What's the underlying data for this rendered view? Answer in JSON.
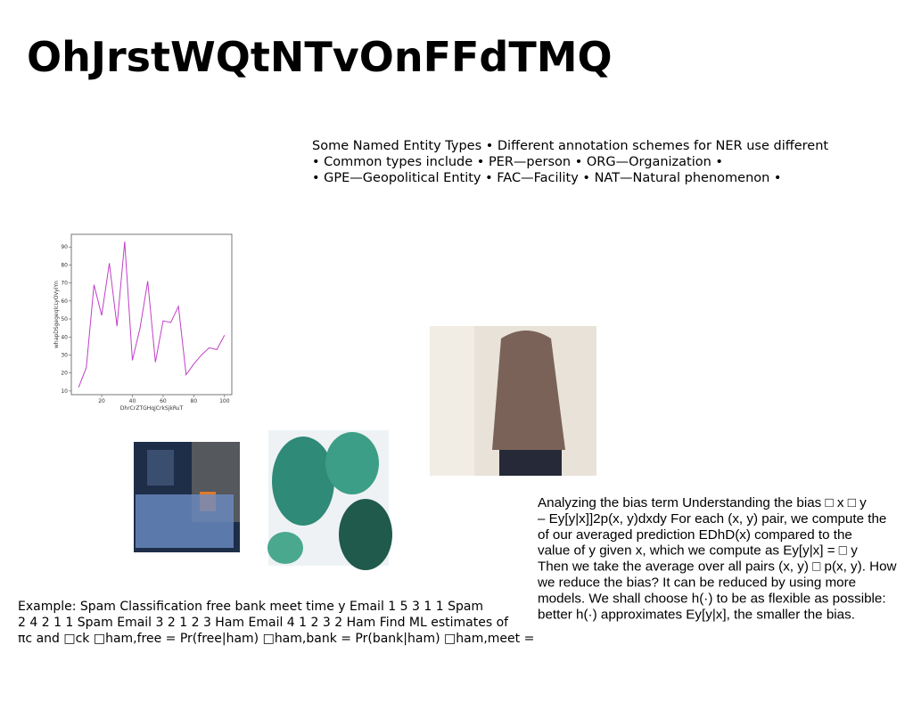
{
  "title": "OhJrstWQtNTvOnFFdTMQ",
  "blocks": [
    {
      "lines": [
        "Some Named Entity Types • Different annotation schemes for NER use different",
        "• Common types include • PER—person • ORG—Organization •",
        "• GPE—Geopolitical Entity • FAC—Facility • NAT—Natural phenomenon •"
      ]
    },
    {
      "lines": [
        "Analyzing the bias term Understanding the bias □ x □ y",
        "– Ey[y|x]]2p(x, y)dxdy For each (x, y) pair, we compute the",
        "of our averaged prediction EDhD(x) compared to the",
        "value of y given x, which we compute as Ey[y|x] = □ y",
        "Then we take the average over all pairs (x, y) □ p(x, y). How",
        "we reduce the bias? It can be reduced by using more",
        "models. We shall choose h(·) to be as flexible as possible:",
        "better h(·) approximates Ey[y|x], the smaller the bias."
      ]
    },
    {
      "lines": [
        "Example: Spam Classification free bank meet time y Email 1 5 3 1 1 Spam",
        "2 4 2 1 1 Spam Email 3 2 1 2 3 Ham Email 4 1 2 3 2 Ham Find ML estimates of",
        "πc and □ck □ham,free = Pr(free|ham) □ham,bank = Pr(bank|ham) □ham,meet ="
      ]
    }
  ],
  "chart": {
    "type": "line",
    "xlabel": "DhrCrZTGHqjCrkSjkRuT",
    "ylabel": "whapDSgegeqlcLyOVyiYn",
    "color": "#c040c8",
    "x": [
      5,
      10,
      15,
      20,
      25,
      30,
      35,
      40,
      45,
      50,
      55,
      60,
      65,
      70,
      75,
      80,
      85,
      90,
      95,
      100
    ],
    "values": [
      12,
      23,
      69,
      52,
      81,
      46,
      93,
      27,
      45,
      71,
      26,
      49,
      48,
      57,
      19,
      25,
      30,
      34,
      33,
      41
    ],
    "xlim": [
      0.25,
      104.75
    ],
    "ylim": [
      7.95,
      97.05
    ],
    "xticks": [
      20,
      40,
      60,
      80,
      100
    ],
    "yticks": [
      10,
      20,
      30,
      40,
      50,
      60,
      70,
      80,
      90
    ]
  }
}
